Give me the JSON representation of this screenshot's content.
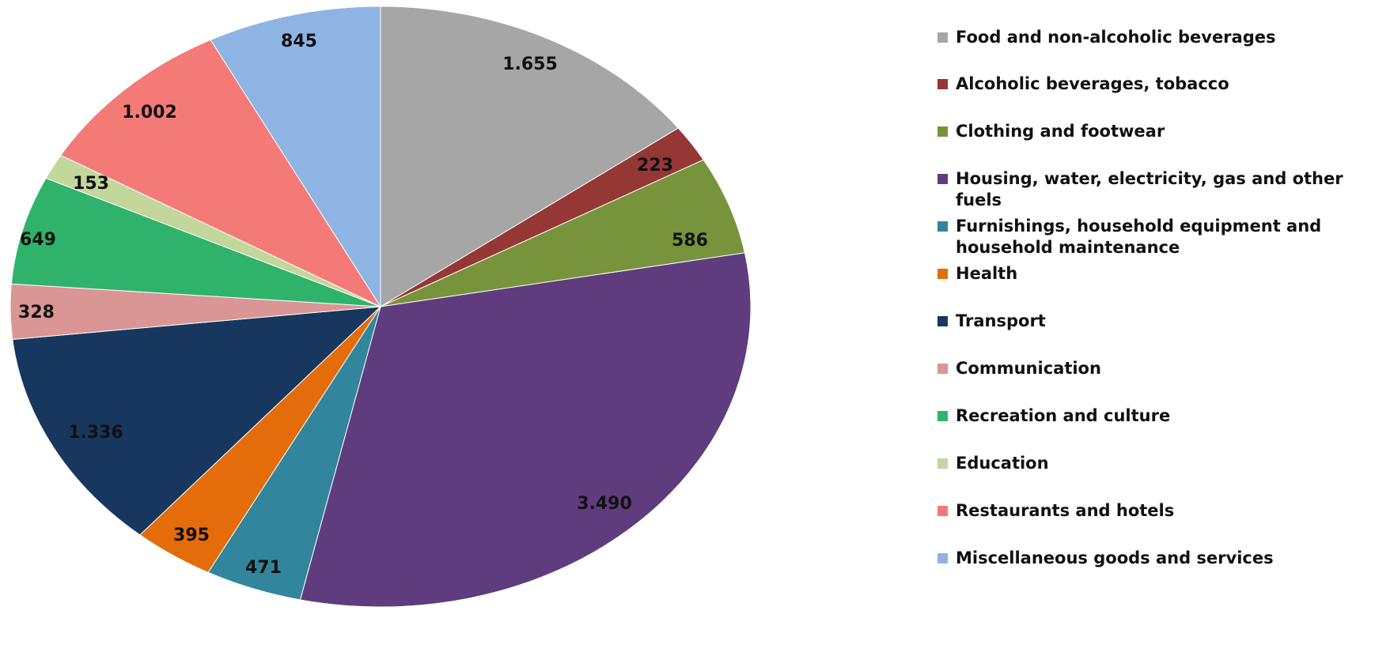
{
  "chart_data": {
    "type": "pie",
    "title": "",
    "legend_position": "right",
    "categories": [
      "Food and non-alcoholic beverages",
      "Alcoholic beverages, tobacco",
      "Clothing and footwear",
      "Housing, water, electricity, gas and other fuels",
      "Furnishings, household equipment and household maintenance",
      "Health",
      "Transport",
      "Communication",
      "Recreation and culture",
      "Education",
      "Restaurants and hotels",
      "Miscellaneous goods and services"
    ],
    "values": [
      1655,
      223,
      586,
      3490,
      471,
      395,
      1336,
      328,
      649,
      153,
      1002,
      845
    ],
    "data_labels": [
      "1.655",
      "223",
      "586",
      "3.490",
      "471",
      "395",
      "1.336",
      "328",
      "649",
      "153",
      "1.002",
      "845"
    ],
    "colors": [
      "#a6a6a6",
      "#953735",
      "#77933c",
      "#5f3c7e",
      "#31859c",
      "#e46c0a",
      "#17375e",
      "#d99694",
      "#2fb36b",
      "#c3d69b",
      "#f47a78",
      "#8eb4e3"
    ]
  }
}
